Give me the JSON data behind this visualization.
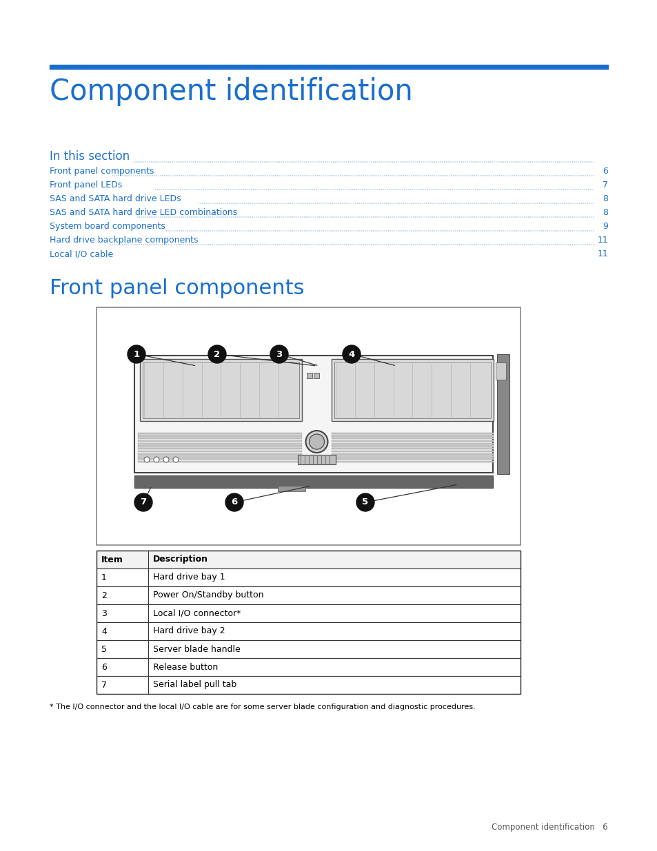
{
  "bg_color": "#ffffff",
  "blue_color": "#1a6fce",
  "title": "Component identification",
  "section_header": "In this section",
  "toc_entries": [
    [
      "Front panel components",
      "6"
    ],
    [
      "Front panel LEDs",
      "7"
    ],
    [
      "SAS and SATA hard drive LEDs",
      "8"
    ],
    [
      "SAS and SATA hard drive LED combinations",
      "8"
    ],
    [
      "System board components",
      "9"
    ],
    [
      "Hard drive backplane components",
      "11"
    ],
    [
      "Local I/O cable",
      "11"
    ]
  ],
  "section2_title": "Front panel components",
  "table_headers": [
    "Item",
    "Description"
  ],
  "table_rows": [
    [
      "1",
      "Hard drive bay 1"
    ],
    [
      "2",
      "Power On/Standby button"
    ],
    [
      "3",
      "Local I/O connector*"
    ],
    [
      "4",
      "Hard drive bay 2"
    ],
    [
      "5",
      "Server blade handle"
    ],
    [
      "6",
      "Release button"
    ],
    [
      "7",
      "Serial label pull tab"
    ]
  ],
  "footnote": "* The I/O connector and the local I/O cable are for some server blade configuration and diagnostic procedures.",
  "footer_text": "Component identification   6"
}
